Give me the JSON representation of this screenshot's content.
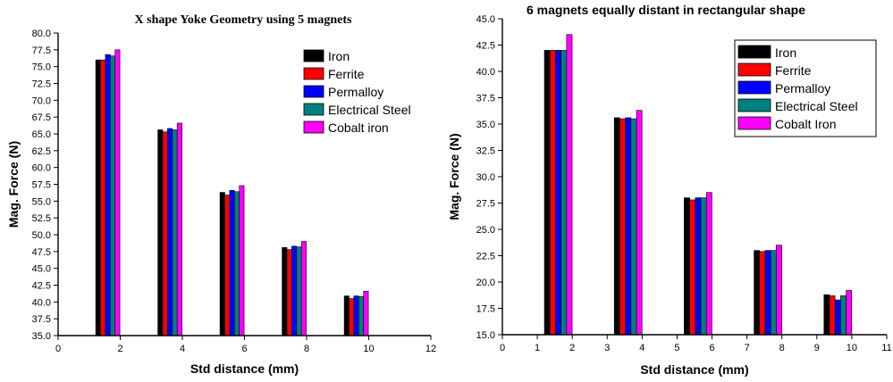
{
  "chart_data": [
    {
      "type": "bar",
      "title": "X shape Yoke Geometry using 5 magnets",
      "xlabel": "Std distance (mm)",
      "ylabel": "Mag. Force (N)",
      "xlim": [
        0,
        12
      ],
      "ylim": [
        35,
        80
      ],
      "xticks": [
        "0",
        "2",
        "4",
        "6",
        "8",
        "10",
        "12"
      ],
      "yticks": [
        "35.0",
        "37.5",
        "40.0",
        "42.5",
        "45.0",
        "47.5",
        "50.0",
        "52.5",
        "55.0",
        "57.5",
        "60.0",
        "62.5",
        "65.0",
        "67.5",
        "70.0",
        "72.5",
        "75.0",
        "77.5",
        "80.0"
      ],
      "x": [
        1.6,
        3.6,
        5.6,
        7.6,
        9.6
      ],
      "legend_position": "top-right",
      "grid": false,
      "series": [
        {
          "name": "Iron",
          "color": "#000000",
          "values": [
            76.0,
            65.6,
            56.3,
            48.1,
            40.9
          ]
        },
        {
          "name": "Ferrite",
          "color": "#ff0000",
          "values": [
            76.0,
            65.3,
            55.9,
            47.8,
            40.5
          ]
        },
        {
          "name": "Permalloy",
          "color": "#0000ff",
          "values": [
            76.8,
            65.8,
            56.6,
            48.3,
            40.9
          ]
        },
        {
          "name": "Electrical Steel",
          "color": "#008080",
          "values": [
            76.6,
            65.6,
            56.4,
            48.2,
            40.8
          ]
        },
        {
          "name": "Cobalt iron",
          "color": "#ff00ff",
          "values": [
            77.5,
            66.6,
            57.3,
            49.0,
            41.6
          ]
        }
      ]
    },
    {
      "type": "bar",
      "title": "6 magnets equally distant in rectangular shape",
      "xlabel": "Std distance (mm)",
      "ylabel": "Mag. Force (N)",
      "xlim": [
        0,
        11
      ],
      "ylim": [
        15,
        45
      ],
      "xticks": [
        "0",
        "1",
        "2",
        "3",
        "4",
        "5",
        "6",
        "7",
        "8",
        "9",
        "10",
        "11"
      ],
      "yticks": [
        "15.0",
        "17.5",
        "20.0",
        "22.5",
        "25.0",
        "27.5",
        "30.0",
        "32.5",
        "35.0",
        "37.5",
        "40.0",
        "42.5",
        "45.0"
      ],
      "x": [
        1.6,
        3.6,
        5.6,
        7.6,
        9.6
      ],
      "legend_position": "top-right",
      "grid": false,
      "series": [
        {
          "name": "Iron",
          "color": "#000000",
          "values": [
            42.0,
            35.6,
            28.0,
            23.0,
            18.8
          ]
        },
        {
          "name": "Ferrite",
          "color": "#ff0000",
          "values": [
            42.0,
            35.5,
            27.8,
            22.9,
            18.7
          ]
        },
        {
          "name": "Permalloy",
          "color": "#0000ff",
          "values": [
            42.0,
            35.6,
            28.0,
            23.0,
            18.3
          ]
        },
        {
          "name": "Electrical Steel",
          "color": "#008080",
          "values": [
            42.0,
            35.5,
            28.0,
            23.0,
            18.7
          ]
        },
        {
          "name": "Cobalt Iron",
          "color": "#ff00ff",
          "values": [
            43.5,
            36.3,
            28.5,
            23.5,
            19.2
          ]
        }
      ]
    }
  ]
}
